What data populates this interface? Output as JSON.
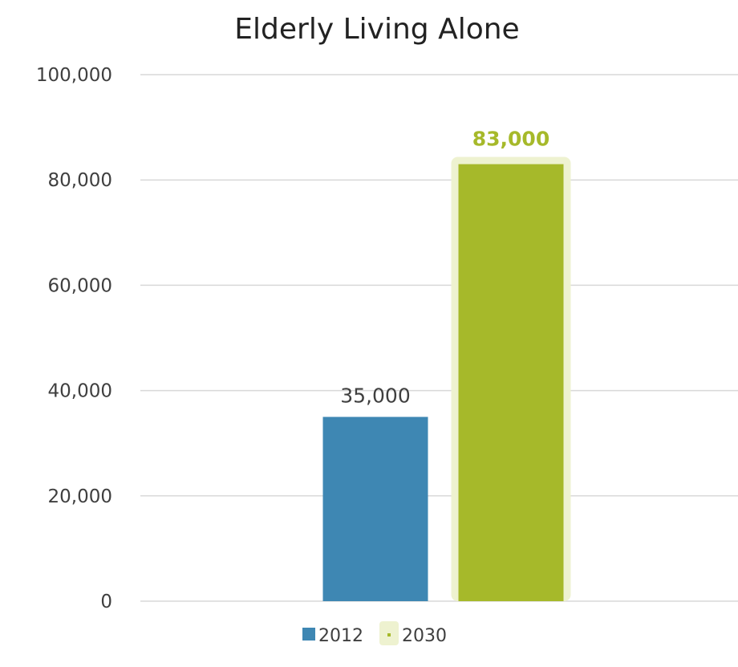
{
  "chart_data": {
    "type": "bar",
    "title": "Elderly Living Alone",
    "xlabel": "",
    "ylabel": "",
    "ylim": [
      0,
      100000
    ],
    "yticks": [
      "0",
      "20,000",
      "40,000",
      "60,000",
      "80,000",
      "100,000"
    ],
    "grid": true,
    "legend_position": "bottom",
    "categories": [
      ""
    ],
    "series": [
      {
        "name": "2012",
        "values": [
          35000
        ],
        "data_label": "35,000",
        "color": "#3e87b3",
        "label_color": "#3f3f3f",
        "label_bold": false,
        "highlight": false
      },
      {
        "name": "2030",
        "values": [
          83000
        ],
        "data_label": "83,000",
        "color": "#a6b92a",
        "label_color": "#a6b92a",
        "label_bold": true,
        "highlight": true,
        "highlight_color": "#eef2d0"
      }
    ]
  }
}
